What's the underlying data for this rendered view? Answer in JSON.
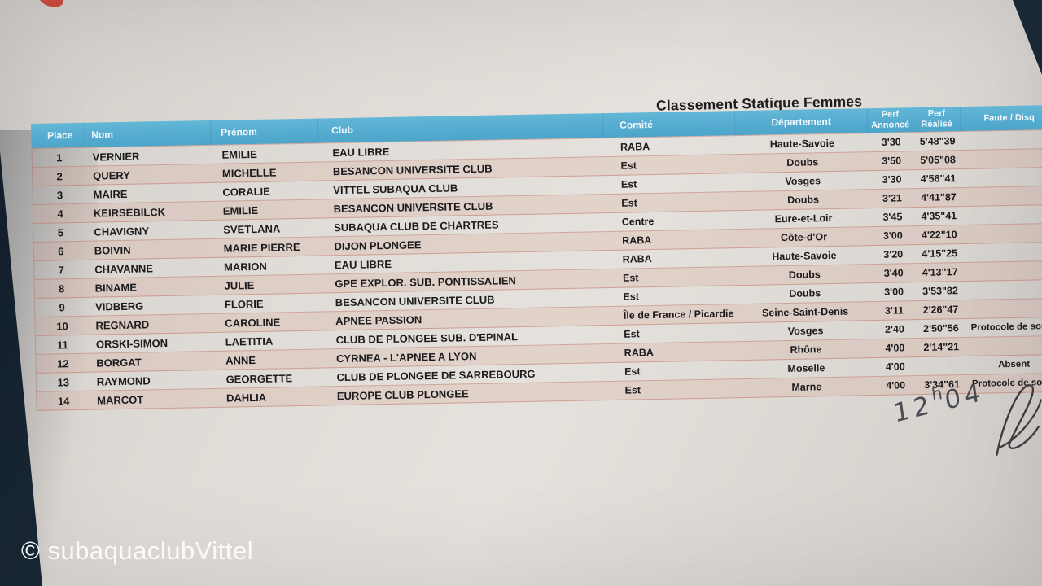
{
  "colors": {
    "header_blue": "#55acd0",
    "rule_pink": "#c87f70",
    "paper": "#dcd8d3",
    "board_navy": "#1e2b39",
    "red_mark": "#c03a2b"
  },
  "photo": {
    "watermark": "© subaquaclubVittel",
    "handwritten_time": {
      "part1": "12",
      "sup": "h",
      "part2": "04"
    }
  },
  "document": {
    "title": "Classement Statique Femmes",
    "table": {
      "header": {
        "place": "Place",
        "nom": "Nom",
        "prenom": "Prénom",
        "club": "Club",
        "comite": "Comité",
        "departement": "Département",
        "annonce_l1": "Perf",
        "annonce_l2": "Annoncé",
        "realise_l1": "Perf",
        "realise_l2": "Réalisé",
        "faute": "Faute / Disq"
      },
      "rows": [
        {
          "place": "1",
          "nom": "VERNIER",
          "prenom": "EMILIE",
          "club": "EAU LIBRE",
          "comite": "RABA",
          "departement": "Haute-Savoie",
          "annonce": "3'30",
          "realise": "5'48\"39",
          "faute": ""
        },
        {
          "place": "2",
          "nom": "QUERY",
          "prenom": "MICHELLE",
          "club": "BESANCON UNIVERSITE CLUB",
          "comite": "Est",
          "departement": "Doubs",
          "annonce": "3'50",
          "realise": "5'05\"08",
          "faute": ""
        },
        {
          "place": "3",
          "nom": "MAIRE",
          "prenom": "CORALIE",
          "club": "VITTEL SUBAQUA CLUB",
          "comite": "Est",
          "departement": "Vosges",
          "annonce": "3'30",
          "realise": "4'56\"41",
          "faute": ""
        },
        {
          "place": "4",
          "nom": "KEIRSEBILCK",
          "prenom": "EMILIE",
          "club": "BESANCON UNIVERSITE CLUB",
          "comite": "Est",
          "departement": "Doubs",
          "annonce": "3'21",
          "realise": "4'41\"87",
          "faute": ""
        },
        {
          "place": "5",
          "nom": "CHAVIGNY",
          "prenom": "SVETLANA",
          "club": "SUBAQUA CLUB DE CHARTRES",
          "comite": "Centre",
          "departement": "Eure-et-Loir",
          "annonce": "3'45",
          "realise": "4'35\"41",
          "faute": ""
        },
        {
          "place": "6",
          "nom": "BOIVIN",
          "prenom": "MARIE PIERRE",
          "club": "DIJON PLONGEE",
          "comite": "RABA",
          "departement": "Côte-d'Or",
          "annonce": "3'00",
          "realise": "4'22\"10",
          "faute": ""
        },
        {
          "place": "7",
          "nom": "CHAVANNE",
          "prenom": "MARION",
          "club": "EAU LIBRE",
          "comite": "RABA",
          "departement": "Haute-Savoie",
          "annonce": "3'20",
          "realise": "4'15\"25",
          "faute": ""
        },
        {
          "place": "8",
          "nom": "BINAME",
          "prenom": "JULIE",
          "club": "GPE EXPLOR. SUB. PONTISSALIEN",
          "comite": "Est",
          "departement": "Doubs",
          "annonce": "3'40",
          "realise": "4'13\"17",
          "faute": ""
        },
        {
          "place": "9",
          "nom": "VIDBERG",
          "prenom": "FLORIE",
          "club": "BESANCON UNIVERSITE CLUB",
          "comite": "Est",
          "departement": "Doubs",
          "annonce": "3'00",
          "realise": "3'53\"82",
          "faute": ""
        },
        {
          "place": "10",
          "nom": "REGNARD",
          "prenom": "CAROLINE",
          "club": "APNEE PASSION",
          "comite": "Île de France / Picardie",
          "departement": "Seine-Saint-Denis",
          "annonce": "3'11",
          "realise": "2'26\"47",
          "faute": ""
        },
        {
          "place": "11",
          "nom": "ORSKI-SIMON",
          "prenom": "LAETITIA",
          "club": "CLUB DE PLONGEE SUB. D'EPINAL",
          "comite": "Est",
          "departement": "Vosges",
          "annonce": "2'40",
          "realise": "2'50\"56",
          "faute": "Protocole de sortie"
        },
        {
          "place": "12",
          "nom": "BORGAT",
          "prenom": "ANNE",
          "club": "CYRNEA - L'APNEE A LYON",
          "comite": "RABA",
          "departement": "Rhône",
          "annonce": "4'00",
          "realise": "2'14\"21",
          "faute": ""
        },
        {
          "place": "13",
          "nom": "RAYMOND",
          "prenom": "GEORGETTE",
          "club": "CLUB DE PLONGEE DE SARREBOURG",
          "comite": "Est",
          "departement": "Moselle",
          "annonce": "4'00",
          "realise": "",
          "faute": "Absent"
        },
        {
          "place": "14",
          "nom": "MARCOT",
          "prenom": "DAHLIA",
          "club": "EUROPE CLUB PLONGEE",
          "comite": "Est",
          "departement": "Marne",
          "annonce": "4'00",
          "realise": "3'34\"61",
          "faute": "Protocole de sortie"
        }
      ]
    }
  }
}
